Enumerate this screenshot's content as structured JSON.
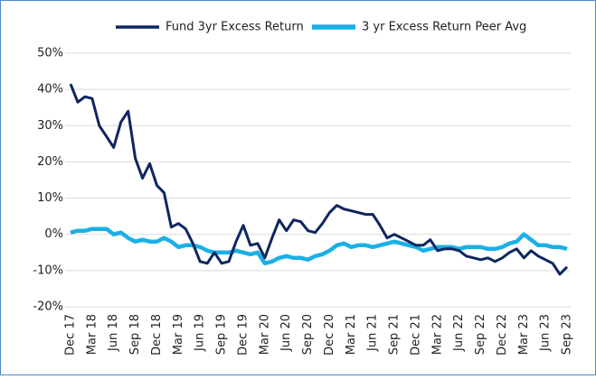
{
  "chart_data": {
    "type": "line",
    "categories": [
      "Dec 17",
      null,
      null,
      "Mar 18",
      null,
      null,
      "Jun 18",
      null,
      null,
      "Sep 18",
      null,
      null,
      "Dec 18",
      null,
      null,
      "Mar 19",
      null,
      null,
      "Jun 19",
      null,
      null,
      "Sep 19",
      null,
      null,
      "Dec 19",
      null,
      null,
      "Mar 20",
      null,
      null,
      "Jun 20",
      null,
      null,
      "Sep 20",
      null,
      null,
      "Dec 20",
      null,
      null,
      "Mar 21",
      null,
      null,
      "Jun 21",
      null,
      null,
      "Sep 21",
      null,
      null,
      "Dec 21",
      null,
      null,
      "Mar 22",
      null,
      null,
      "Jun 22",
      null,
      null,
      "Sep 22",
      null,
      null,
      "Dec 22",
      null,
      null,
      "Mar 23",
      null,
      null,
      "Jun 23",
      null,
      null,
      "Sep 23"
    ],
    "series": [
      {
        "name": "Fund 3yr Excess Return",
        "color": "#0e2660",
        "values": [
          41.5,
          36.5,
          38,
          37.5,
          30,
          27,
          24,
          31,
          34,
          21,
          15.5,
          19.5,
          13.5,
          11.5,
          2,
          3,
          1.5,
          -2.5,
          -7.5,
          -8,
          -5,
          -8,
          -7.5,
          -2,
          2.5,
          -3,
          -2.5,
          -6.5,
          -1,
          4,
          1,
          4,
          3.5,
          1,
          0.5,
          3,
          6,
          8,
          7,
          6.5,
          6,
          5.5,
          5.5,
          2.5,
          -1,
          0,
          -1,
          -2,
          -3,
          -3,
          -1.5,
          -4.5,
          -4,
          -4,
          -4.5,
          -6,
          -6.5,
          -7,
          -6.5,
          -7.5,
          -6.5,
          -5,
          -4,
          -6.5,
          -4.5,
          -6,
          -7,
          -8,
          -11,
          -9
        ]
      },
      {
        "name": "3 yr Excess Return Peer Avg",
        "color": "#1ab0e6",
        "values": [
          0.5,
          1,
          1,
          1.5,
          1.5,
          1.5,
          0,
          0.5,
          -1,
          -2,
          -1.5,
          -2,
          -2,
          -1,
          -2,
          -3.5,
          -3,
          -3,
          -3.5,
          -4.5,
          -5,
          -5,
          -5,
          -4.5,
          -5,
          -5.5,
          -5,
          -8,
          -7.5,
          -6.5,
          -6,
          -6.5,
          -6.5,
          -7,
          -6,
          -5.5,
          -4.5,
          -3,
          -2.5,
          -3.5,
          -3,
          -3,
          -3.5,
          -3,
          -2.5,
          -2,
          -2.5,
          -3,
          -3.5,
          -4.5,
          -4,
          -3.5,
          -3.5,
          -3.5,
          -4,
          -3.5,
          -3.5,
          -3.5,
          -4,
          -4,
          -3.5,
          -2.5,
          -2,
          0,
          -1.5,
          -3,
          -3,
          -3.5,
          -3.5,
          -4
        ]
      }
    ],
    "ylim": [
      -20,
      50
    ],
    "yticks": [
      {
        "value": -20,
        "label": "-20%"
      },
      {
        "value": -10,
        "label": "-10%"
      },
      {
        "value": 0,
        "label": "0%"
      },
      {
        "value": 10,
        "label": "10%"
      },
      {
        "value": 20,
        "label": "20%"
      },
      {
        "value": 30,
        "label": "30%"
      },
      {
        "value": 40,
        "label": "40%"
      },
      {
        "value": 50,
        "label": "50%"
      }
    ],
    "grid": true,
    "legend": "top"
  }
}
